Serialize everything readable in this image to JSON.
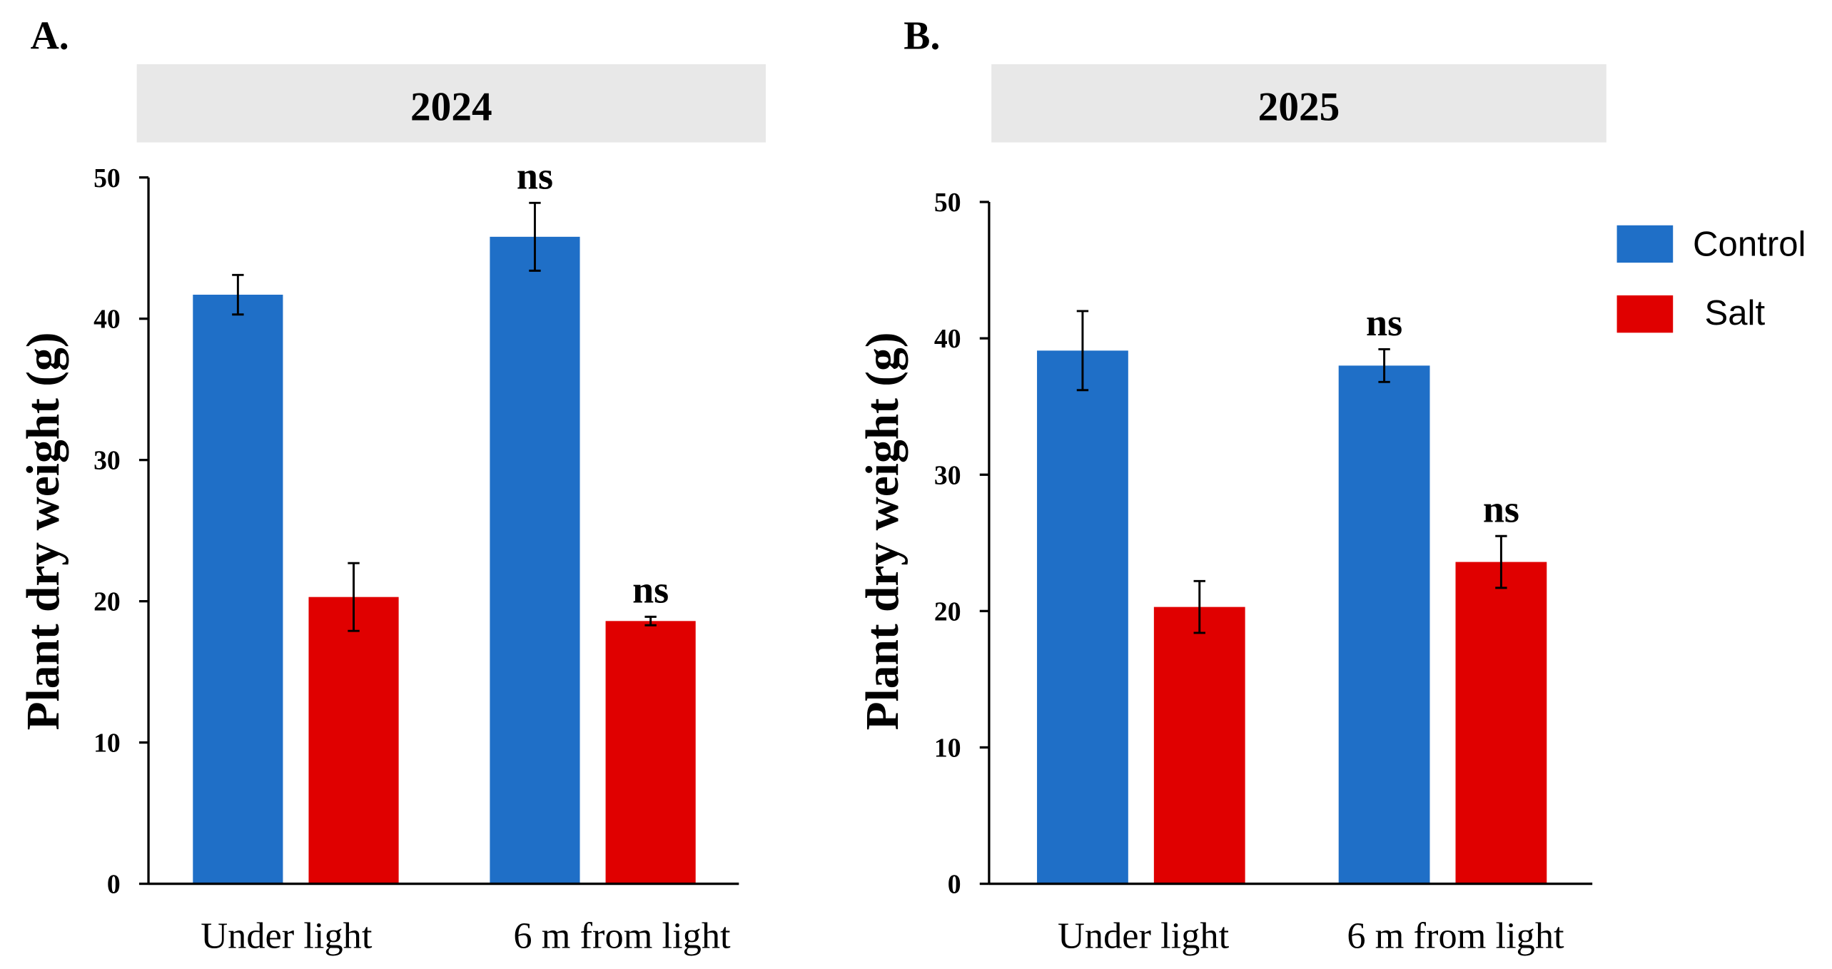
{
  "chart_data": [
    {
      "panel": "A.",
      "year": "2024",
      "type": "bar",
      "categories": [
        "Under light",
        "6 m from light"
      ],
      "ylabel": "Plant dry weight (g)",
      "ylim": [
        0,
        50
      ],
      "yticks": [
        0,
        10,
        20,
        30,
        40,
        50
      ],
      "series": [
        {
          "name": "Control",
          "color": "#1f6fc7",
          "values": [
            41.7,
            45.8
          ],
          "errors": [
            1.4,
            2.4
          ],
          "annotations": [
            "",
            "ns"
          ]
        },
        {
          "name": "Salt",
          "color": "#e00000",
          "values": [
            20.3,
            18.6
          ],
          "errors": [
            2.4,
            0.3
          ],
          "annotations": [
            "",
            "ns"
          ]
        }
      ]
    },
    {
      "panel": "B.",
      "year": "2025",
      "type": "bar",
      "categories": [
        "Under light",
        "6 m from light"
      ],
      "ylabel": "Plant dry weight (g)",
      "ylim": [
        0,
        50
      ],
      "yticks": [
        0,
        10,
        20,
        30,
        40,
        50
      ],
      "series": [
        {
          "name": "Control",
          "color": "#1f6fc7",
          "values": [
            39.1,
            38.0
          ],
          "errors": [
            2.9,
            1.2
          ],
          "annotations": [
            "",
            "ns"
          ]
        },
        {
          "name": "Salt",
          "color": "#e00000",
          "values": [
            20.3,
            23.6
          ],
          "errors": [
            1.9,
            1.9
          ],
          "annotations": [
            "",
            "ns"
          ]
        }
      ]
    }
  ],
  "legend": {
    "placement": "right",
    "items": [
      {
        "label": "Control",
        "color": "#1f6fc7"
      },
      {
        "label": "Salt",
        "color": "#e00000"
      }
    ]
  },
  "header_color": "#e8e8e8"
}
